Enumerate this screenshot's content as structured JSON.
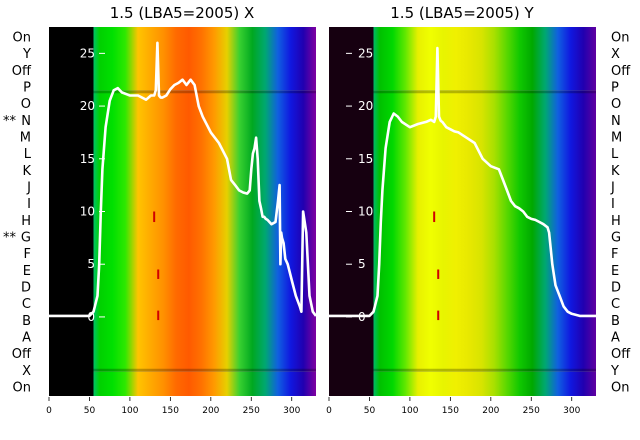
{
  "chart_data": [
    {
      "type": "heatmap",
      "title": "1.5 (LBA5=2005) X",
      "xlim": [
        0,
        330
      ],
      "x_ticks": [
        0,
        50,
        100,
        150,
        200,
        250,
        300
      ],
      "ylim": [
        -7.5,
        27.5
      ],
      "y_ticks": [
        0,
        5,
        10,
        15,
        20,
        25
      ],
      "row_labels": [
        "On",
        "Y",
        "Off",
        "P",
        "O",
        "N",
        "M",
        "L",
        "K",
        "J",
        "I",
        "H",
        "G",
        "F",
        "E",
        "D",
        "C",
        "B",
        "A",
        "Off",
        "X",
        "On"
      ],
      "marked_rows": [
        "N",
        "G"
      ],
      "marker_text": "**",
      "heatmap_colors": [
        "#000000",
        "#5a0070",
        "#1a2ad0",
        "#00b4d0",
        "#00d000",
        "#00e000",
        "#2ee800",
        "#ffc400",
        "#ffaa00",
        "#ff9000",
        "#ff6a00",
        "#ff5a00",
        "#ff7200",
        "#ff9a00",
        "#e6d000",
        "#38d030",
        "#00a820",
        "#00a870",
        "#1060e0",
        "#1018e0",
        "#2000b0",
        "#8000a0"
      ],
      "band_limits": [
        -7.5,
        -5.2,
        21.5,
        27.5
      ],
      "series": [
        {
          "x": [
            0,
            50,
            55,
            60,
            62,
            64,
            66,
            70,
            75,
            80,
            85,
            90,
            100,
            110,
            120,
            126,
            130,
            132,
            134,
            136,
            138,
            140,
            145,
            150,
            155,
            160,
            165,
            170,
            175,
            180,
            185,
            190,
            200,
            210,
            220,
            225,
            230,
            235,
            240,
            245,
            248,
            250,
            252,
            254,
            256,
            258,
            260,
            262,
            264,
            266,
            268,
            270,
            275,
            280,
            283,
            285,
            286,
            287,
            288,
            290,
            292,
            295,
            300,
            305,
            310,
            312,
            314,
            318,
            322,
            326,
            330
          ],
          "y": [
            0.1,
            0.1,
            0.5,
            2,
            5,
            10,
            14,
            18,
            20.5,
            21.5,
            21.7,
            21.3,
            21,
            21,
            20.6,
            21,
            21,
            21.5,
            26,
            21,
            20.8,
            20.8,
            21,
            21.6,
            22,
            22.2,
            22.5,
            22,
            22.5,
            22,
            20,
            19,
            17.5,
            16.5,
            15,
            13,
            12.5,
            12,
            11.8,
            11.7,
            12,
            14,
            15.5,
            16,
            17,
            15,
            11,
            10.3,
            9.5,
            9.5,
            9.3,
            9.2,
            8.8,
            9,
            11,
            12.5,
            5,
            8,
            7.5,
            7,
            5.5,
            5,
            3.5,
            2,
            1,
            0.5,
            10,
            8,
            2,
            0.5,
            0.1
          ]
        }
      ]
    },
    {
      "type": "heatmap",
      "title": "1.5 (LBA5=2005) Y",
      "xlim": [
        0,
        330
      ],
      "x_ticks": [
        0,
        50,
        100,
        150,
        200,
        250,
        300
      ],
      "ylim": [
        -7.5,
        27.5
      ],
      "y_ticks": [
        0,
        5,
        10,
        15,
        20,
        25
      ],
      "row_labels": [
        "On",
        "X",
        "Off",
        "P",
        "O",
        "N",
        "M",
        "L",
        "K",
        "J",
        "I",
        "H",
        "G",
        "F",
        "E",
        "D",
        "C",
        "B",
        "A",
        "Off",
        "Y",
        "On"
      ],
      "marked_rows": [],
      "marker_text": "**",
      "heatmap_colors": [
        "#160010",
        "#3c0050",
        "#1a2ad0",
        "#00b4d0",
        "#00c000",
        "#00d800",
        "#60e800",
        "#e8f000",
        "#f0ff00",
        "#e8f400",
        "#f0f000",
        "#e8e800",
        "#d8e400",
        "#a8e000",
        "#58d800",
        "#10c800",
        "#00a800",
        "#00a870",
        "#1060e0",
        "#1018e0",
        "#2000b0",
        "#6000a0"
      ],
      "band_limits": [
        -7.5,
        -5.2,
        21.5,
        27.5
      ],
      "series": [
        {
          "x": [
            0,
            50,
            55,
            60,
            62,
            64,
            66,
            70,
            75,
            80,
            85,
            90,
            100,
            110,
            120,
            126,
            130,
            132,
            134,
            136,
            138,
            140,
            145,
            150,
            155,
            160,
            170,
            180,
            190,
            200,
            210,
            215,
            220,
            225,
            230,
            235,
            240,
            245,
            250,
            255,
            260,
            265,
            270,
            272,
            274,
            276,
            278,
            280,
            285,
            290,
            295,
            300,
            310,
            320,
            330
          ],
          "y": [
            0.1,
            0.1,
            0.5,
            2,
            5,
            9,
            12,
            16,
            18.5,
            19.3,
            19,
            18.5,
            18,
            18.3,
            18.5,
            18.7,
            18.5,
            19,
            25.5,
            19,
            18.6,
            18.5,
            18,
            17.8,
            17.6,
            17.5,
            17,
            16.5,
            15,
            14.3,
            14,
            13,
            12,
            11,
            10.5,
            10.3,
            10,
            9.5,
            9.3,
            9.2,
            9,
            8.8,
            8.5,
            8,
            6.5,
            5,
            4,
            3,
            2,
            1,
            0.5,
            0.3,
            0.1,
            0.1,
            0.1
          ]
        }
      ]
    }
  ]
}
